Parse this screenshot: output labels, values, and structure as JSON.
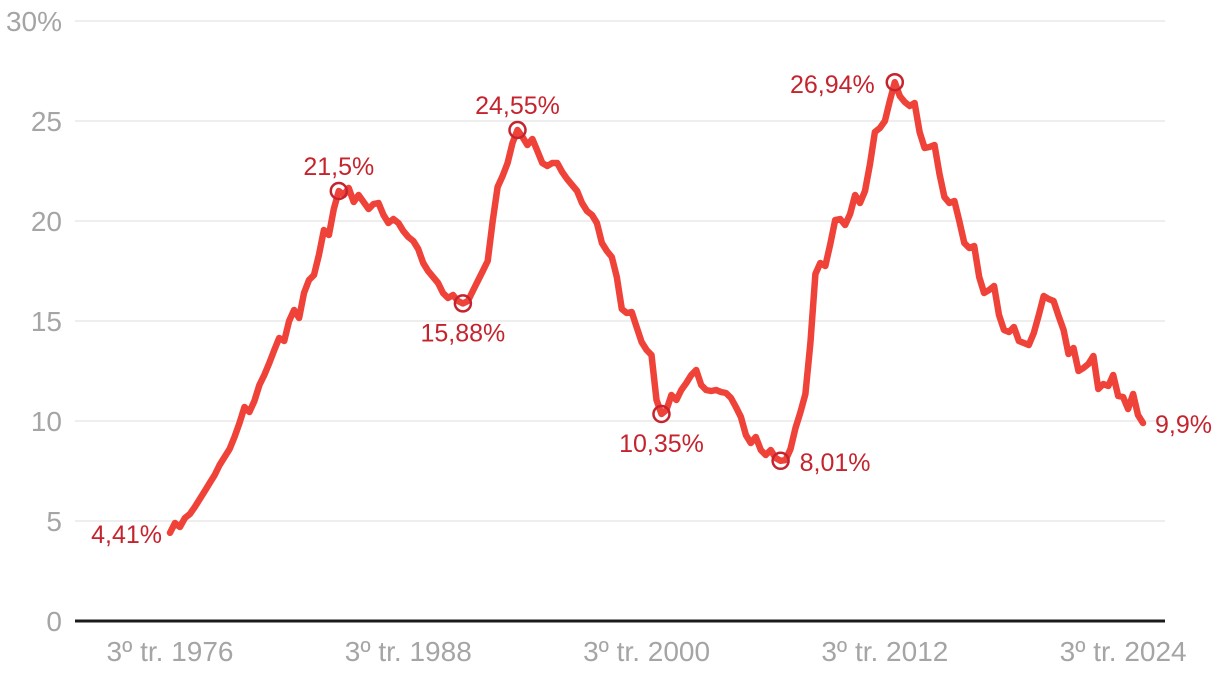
{
  "chart_data": {
    "type": "line",
    "unit": "%",
    "frequency": "quarterly",
    "x_start": "3º tr. 1976",
    "x_end": "3º tr. 2025",
    "ylim": [
      0,
      30
    ],
    "grid": "horizontal",
    "legend": "none",
    "y_ticks": [
      {
        "value": 30,
        "label": "30%"
      },
      {
        "value": 25,
        "label": "25"
      },
      {
        "value": 20,
        "label": "20"
      },
      {
        "value": 15,
        "label": "15"
      },
      {
        "value": 10,
        "label": "10"
      },
      {
        "value": 5,
        "label": "5"
      },
      {
        "value": 0,
        "label": "0"
      }
    ],
    "x_ticks": [
      {
        "index": 0,
        "label": "3º tr. 1976"
      },
      {
        "index": 48,
        "label": "3º tr. 1988"
      },
      {
        "index": 96,
        "label": "3º tr. 2000"
      },
      {
        "index": 144,
        "label": "3º tr. 2012"
      },
      {
        "index": 192,
        "label": "3º tr. 2024"
      }
    ],
    "values": [
      4.41,
      4.9,
      4.7,
      5.15,
      5.35,
      5.7,
      6.1,
      6.5,
      6.9,
      7.3,
      7.8,
      8.2,
      8.6,
      9.2,
      9.9,
      10.7,
      10.45,
      11.0,
      11.8,
      12.3,
      12.9,
      13.55,
      14.15,
      14.0,
      15.0,
      15.55,
      15.15,
      16.4,
      17.05,
      17.3,
      18.3,
      19.55,
      19.3,
      20.6,
      21.5,
      21.3,
      21.65,
      20.95,
      21.3,
      20.95,
      20.6,
      20.85,
      20.9,
      20.3,
      19.9,
      20.1,
      19.9,
      19.5,
      19.2,
      19.0,
      18.6,
      17.9,
      17.5,
      17.2,
      16.9,
      16.4,
      16.15,
      16.3,
      16.0,
      15.88,
      16.0,
      16.5,
      17.0,
      17.5,
      18.0,
      20.0,
      21.7,
      22.25,
      22.9,
      23.9,
      24.55,
      24.2,
      23.8,
      24.1,
      23.5,
      22.9,
      22.75,
      22.9,
      22.9,
      22.45,
      22.1,
      21.8,
      21.5,
      20.9,
      20.5,
      20.3,
      19.9,
      18.9,
      18.5,
      18.2,
      17.2,
      15.6,
      15.4,
      15.45,
      14.7,
      13.95,
      13.55,
      13.3,
      11.05,
      10.35,
      10.55,
      11.3,
      11.05,
      11.55,
      11.9,
      12.3,
      12.55,
      11.8,
      11.55,
      11.5,
      11.55,
      11.45,
      11.4,
      11.15,
      10.7,
      10.2,
      9.3,
      8.9,
      9.2,
      8.55,
      8.3,
      8.55,
      8.15,
      8.01,
      8.05,
      8.6,
      9.65,
      10.45,
      11.35,
      13.9,
      17.35,
      17.9,
      17.75,
      18.85,
      20.05,
      20.1,
      19.8,
      20.35,
      21.3,
      20.9,
      21.5,
      22.85,
      24.45,
      24.65,
      25.0,
      26.0,
      26.94,
      26.25,
      25.95,
      25.75,
      25.9,
      24.45,
      23.65,
      23.7,
      23.8,
      22.35,
      21.2,
      20.9,
      21.0,
      20.0,
      18.9,
      18.65,
      18.75,
      17.2,
      16.4,
      16.55,
      16.75,
      15.3,
      14.55,
      14.45,
      14.7,
      14.0,
      13.9,
      13.8,
      14.4,
      15.3,
      16.25,
      16.1,
      16.0,
      15.25,
      14.55,
      13.35,
      13.65,
      12.5,
      12.65,
      12.85,
      13.25,
      11.6,
      11.85,
      11.75,
      12.3,
      11.25,
      11.2,
      10.6,
      11.35,
      10.3,
      9.9
    ],
    "annotations": [
      {
        "index": 0,
        "label": "4,41%",
        "placement": "start",
        "circle": false
      },
      {
        "index": 34,
        "label": "21,5%",
        "placement": "above",
        "circle": true
      },
      {
        "index": 59,
        "label": "15,88%",
        "placement": "below",
        "circle": true
      },
      {
        "index": 70,
        "label": "24,55%",
        "placement": "above",
        "circle": true
      },
      {
        "index": 99,
        "label": "10,35%",
        "placement": "below",
        "circle": true
      },
      {
        "index": 123,
        "label": "8,01%",
        "placement": "right",
        "circle": true
      },
      {
        "index": 146,
        "label": "26,94%",
        "placement": "left",
        "circle": true
      },
      {
        "index": 196,
        "label": "9,9%",
        "placement": "end",
        "circle": false
      }
    ],
    "colors": {
      "line": "#ef4339",
      "annotation_text": "#c5242e",
      "marker_stroke": "#c5242e",
      "axis_text": "#a5a5a5",
      "gridline": "#e8e8e8",
      "baseline": "#1b1b1b",
      "background": "#ffffff"
    }
  }
}
